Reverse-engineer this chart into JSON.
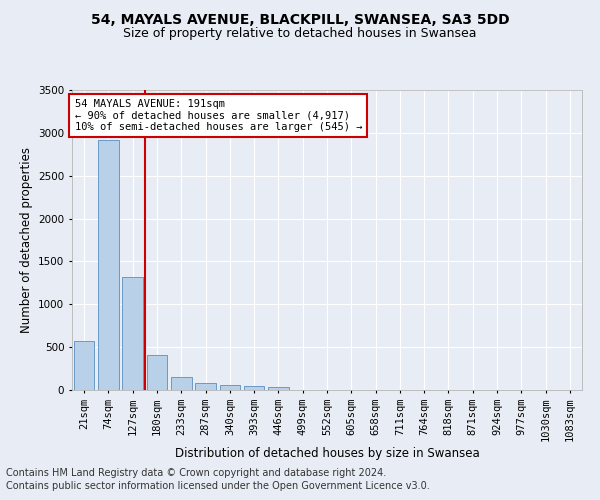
{
  "title1": "54, MAYALS AVENUE, BLACKPILL, SWANSEA, SA3 5DD",
  "title2": "Size of property relative to detached houses in Swansea",
  "xlabel": "Distribution of detached houses by size in Swansea",
  "ylabel": "Number of detached properties",
  "categories": [
    "21sqm",
    "74sqm",
    "127sqm",
    "180sqm",
    "233sqm",
    "287sqm",
    "340sqm",
    "393sqm",
    "446sqm",
    "499sqm",
    "552sqm",
    "605sqm",
    "658sqm",
    "711sqm",
    "764sqm",
    "818sqm",
    "871sqm",
    "924sqm",
    "977sqm",
    "1030sqm",
    "1083sqm"
  ],
  "values": [
    575,
    2920,
    1320,
    410,
    155,
    80,
    55,
    45,
    40,
    0,
    0,
    0,
    0,
    0,
    0,
    0,
    0,
    0,
    0,
    0,
    0
  ],
  "bar_color": "#b8d0e8",
  "bar_edge_color": "#5a8fc0",
  "vline_x_idx": 3,
  "vline_color": "#cc0000",
  "annotation_text": "54 MAYALS AVENUE: 191sqm\n← 90% of detached houses are smaller (4,917)\n10% of semi-detached houses are larger (545) →",
  "annotation_box_color": "#ffffff",
  "annotation_box_edge": "#cc0000",
  "ylim": [
    0,
    3500
  ],
  "yticks": [
    0,
    500,
    1000,
    1500,
    2000,
    2500,
    3000,
    3500
  ],
  "background_color": "#e8edf5",
  "grid_color": "#ffffff",
  "footer1": "Contains HM Land Registry data © Crown copyright and database right 2024.",
  "footer2": "Contains public sector information licensed under the Open Government Licence v3.0.",
  "title1_fontsize": 10,
  "title2_fontsize": 9,
  "axis_label_fontsize": 8.5,
  "tick_fontsize": 7.5,
  "footer_fontsize": 7,
  "annot_fontsize": 7.5
}
